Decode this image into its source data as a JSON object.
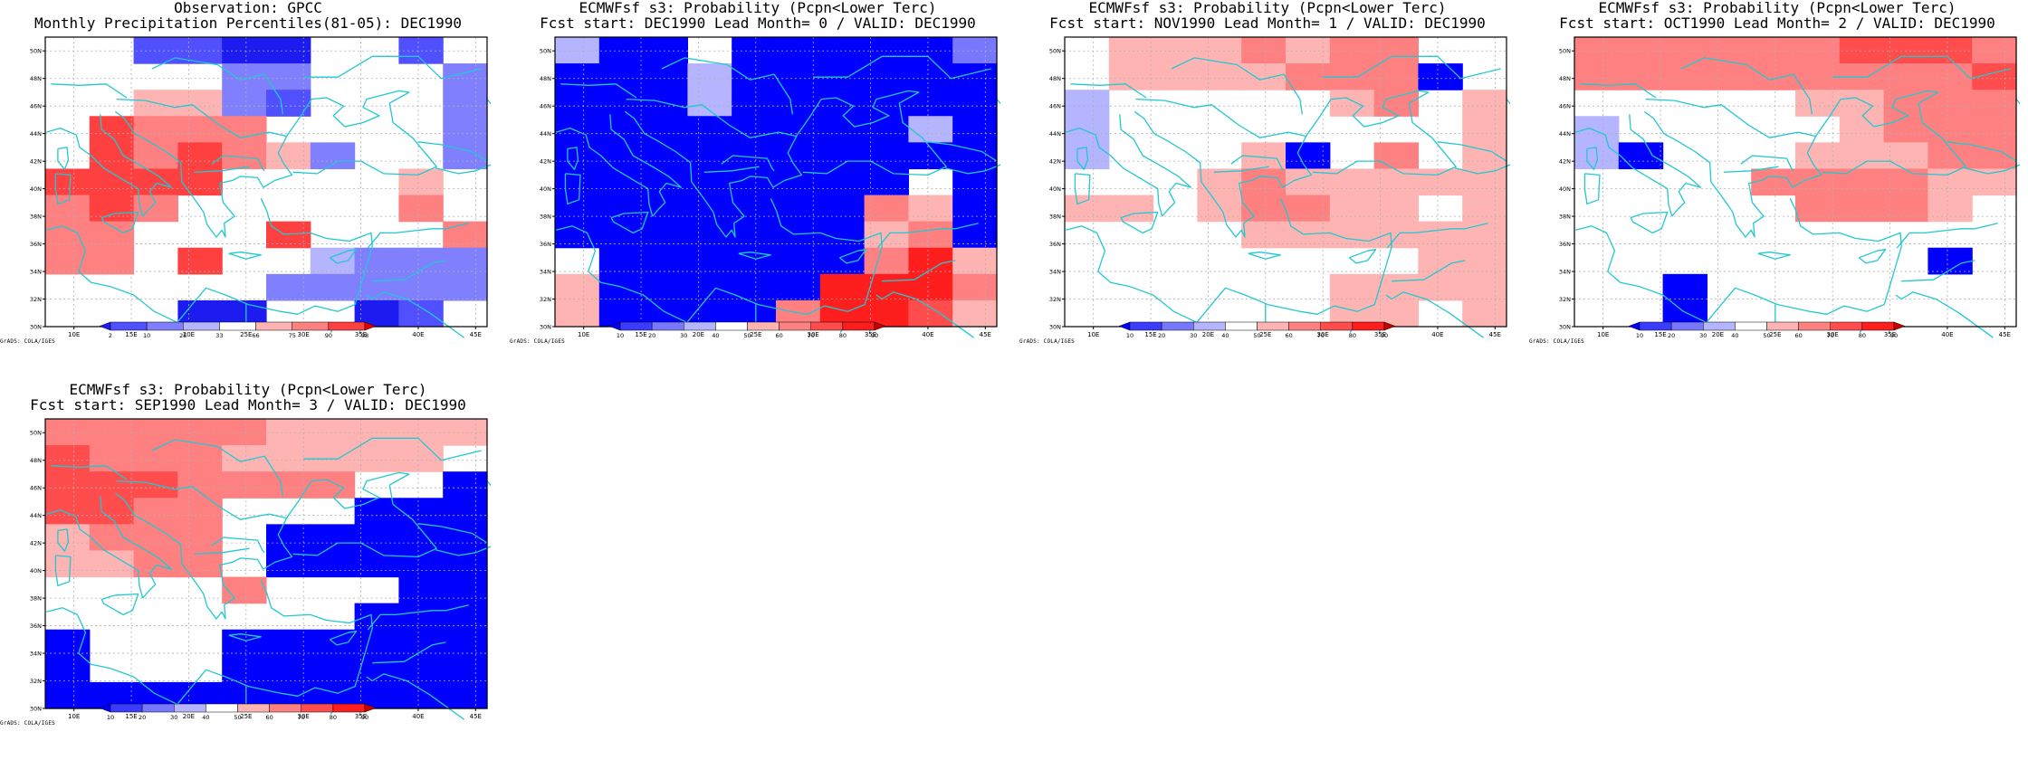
{
  "panels": [
    {
      "title1": "Observation: GPCC",
      "title2": "Monthly Precipitation Percentiles(81-05): DEC1990",
      "credit": "GrADS: COLA/IGES",
      "colorbar_labels": [
        "2",
        "10",
        "25",
        "33",
        "66",
        "75",
        "90",
        "98"
      ],
      "palette": [
        "#1c1cf0",
        "#5050ff",
        "#8080ff",
        "#b4b4ff",
        "#ffffff",
        "#ffb4b4",
        "#ff8080",
        "#ff4040",
        "#e00000"
      ],
      "grid": [
        "4411004414",
        "4444224442",
        "4455214442",
        "4766644442",
        "4767652442",
        "7777444454",
        "6764444464",
        "6644474446",
        "6647443222",
        "4444422222",
        "4440044014"
      ]
    },
    {
      "title1": "ECMWFsf s3: Probability (Pcpn<Lower Terc)",
      "title2": "Fcst start: DEC1990  Lead Month= 0 / VALID: DEC1990",
      "credit": "GrADS: COLA/IGES",
      "colorbar_labels": [
        "10",
        "20",
        "30",
        "40",
        "50",
        "60",
        "70",
        "80",
        "90"
      ],
      "palette": [
        "#0000ff",
        "#3c3cff",
        "#7878ff",
        "#b4b4ff",
        "#ffffff",
        "#ffb4b4",
        "#ff8080",
        "#ff4c4c",
        "#ff1e1e",
        "#c80000"
      ],
      "grid": [
        "3004000002",
        "0003000000",
        "0003000000",
        "0000000030",
        "0000000000",
        "0000000040",
        "0000000650",
        "0000000560",
        "4000000685",
        "5000008886",
        "5000068875"
      ]
    },
    {
      "title1": "ECMWFsf s3: Probability (Pcpn<Lower Terc)",
      "title2": "Fcst start: NOV1990  Lead Month= 1 / VALID: DEC1990",
      "credit": "GrADS: COLA/IGES",
      "colorbar_labels": [
        "10",
        "20",
        "30",
        "40",
        "50",
        "60",
        "70",
        "80",
        "90"
      ],
      "palette": [
        "#0000ff",
        "#3c3cff",
        "#7878ff",
        "#b4b4ff",
        "#ffffff",
        "#ffb4b4",
        "#ff8080",
        "#ff4c4c",
        "#ff1e1e",
        "#c80000"
      ],
      "grid": [
        "4555656644",
        "4555566604",
        "3444445645",
        "3444444445",
        "3444504645",
        "4445655555",
        "5545665545",
        "4444555555",
        "4444444455",
        "4444445555",
        "4444445545"
      ]
    },
    {
      "title1": "ECMWFsf s3: Probability (Pcpn<Lower Terc)",
      "title2": "Fcst start: OCT1990  Lead Month= 2 / VALID: DEC1990",
      "credit": "GrADS: COLA/IGES",
      "colorbar_labels": [
        "10",
        "20",
        "30",
        "40",
        "50",
        "60",
        "70",
        "80",
        "90"
      ],
      "palette": [
        "#0000ff",
        "#3c3cff",
        "#7878ff",
        "#b4b4ff",
        "#ffffff",
        "#ffb4b4",
        "#ff8080",
        "#ff4c4c",
        "#ff1e1e",
        "#c80000"
      ],
      "grid": [
        "6666667776",
        "6666666667",
        "4444455666",
        "3444445666",
        "3044455566",
        "4444666655",
        "4444466654",
        "4444444444",
        "4444444404",
        "4404444444",
        "4404444444"
      ]
    },
    {
      "title1": "ECMWFsf s3: Probability (Pcpn<Lower Terc)",
      "title2": "Fcst start: SEP1990  Lead Month= 3 / VALID: DEC1990",
      "credit": "GrADS: COLA/IGES",
      "colorbar_labels": [
        "10",
        "20",
        "30",
        "40",
        "50",
        "60",
        "70",
        "80",
        "90"
      ],
      "palette": [
        "#0000ff",
        "#3c3cff",
        "#7878ff",
        "#b4b4ff",
        "#ffffff",
        "#ffb4b4",
        "#ff8080",
        "#ff4c4c",
        "#ff1e1e",
        "#c80000"
      ],
      "grid": [
        "6666655555",
        "7666555554",
        "7776666440",
        "7766444000",
        "5666400000",
        "5566400000",
        "4444644400",
        "4444444000",
        "0444000000",
        "0444000000",
        "0000000000"
      ]
    }
  ],
  "lon_labels": [
    "10E",
    "15E",
    "20E",
    "25E",
    "30E",
    "35E",
    "40E",
    "45E"
  ],
  "lat_labels": [
    "50N",
    "48N",
    "46N",
    "44N",
    "42N",
    "40N",
    "38N",
    "36N",
    "34N",
    "32N",
    "30N"
  ],
  "colors": {
    "coast": "#22c8d0",
    "gridline": "#b0b0b0",
    "frame": "#000000"
  }
}
